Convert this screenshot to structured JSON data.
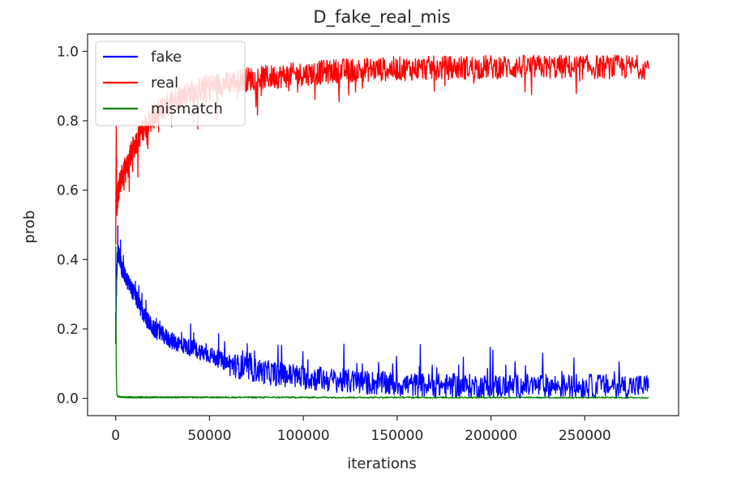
{
  "chart_data": {
    "type": "line",
    "title": "D_fake_real_mis",
    "xlabel": "iterations",
    "ylabel": "prob",
    "xlim": [
      -15000,
      300000
    ],
    "ylim": [
      -0.05,
      1.05
    ],
    "xticks": [
      0,
      50000,
      100000,
      150000,
      200000,
      250000
    ],
    "xtick_labels": [
      "0",
      "50000",
      "100000",
      "150000",
      "200000",
      "250000"
    ],
    "yticks": [
      0.0,
      0.2,
      0.4,
      0.6,
      0.8,
      1.0
    ],
    "ytick_labels": [
      "0.0",
      "0.2",
      "0.4",
      "0.6",
      "0.8",
      "1.0"
    ],
    "grid": false,
    "legend_position": "top-left",
    "x_max": 284000,
    "series": [
      {
        "name": "fake",
        "color": "#0000ff",
        "x": [
          0,
          500,
          1000,
          2000,
          3000,
          5000,
          10000,
          15000,
          20000,
          30000,
          40000,
          50000,
          60000,
          70000,
          80000,
          100000,
          120000,
          150000,
          180000,
          200000,
          250000,
          284000
        ],
        "y": [
          0.18,
          0.35,
          0.42,
          0.41,
          0.38,
          0.35,
          0.3,
          0.24,
          0.2,
          0.165,
          0.145,
          0.125,
          0.1,
          0.085,
          0.075,
          0.06,
          0.05,
          0.04,
          0.035,
          0.035,
          0.035,
          0.035
        ],
        "noise_amplitude": 0.035
      },
      {
        "name": "real",
        "color": "#ff0000",
        "x": [
          0,
          300,
          600,
          1000,
          2000,
          5000,
          10000,
          15000,
          20000,
          30000,
          40000,
          50000,
          60000,
          70000,
          80000,
          100000,
          120000,
          150000,
          200000,
          250000,
          284000
        ],
        "y": [
          0.45,
          0.78,
          0.56,
          0.58,
          0.62,
          0.66,
          0.73,
          0.78,
          0.81,
          0.86,
          0.885,
          0.9,
          0.91,
          0.92,
          0.925,
          0.935,
          0.945,
          0.95,
          0.955,
          0.955,
          0.955
        ],
        "noise_amplitude": 0.035
      },
      {
        "name": "mismatch",
        "color": "#008000",
        "x": [
          0,
          100,
          300,
          600,
          1000,
          2000,
          5000,
          284000
        ],
        "y": [
          0.44,
          0.3,
          0.08,
          0.012,
          0.006,
          0.004,
          0.003,
          0.002
        ],
        "noise_amplitude": 0.002
      }
    ]
  }
}
